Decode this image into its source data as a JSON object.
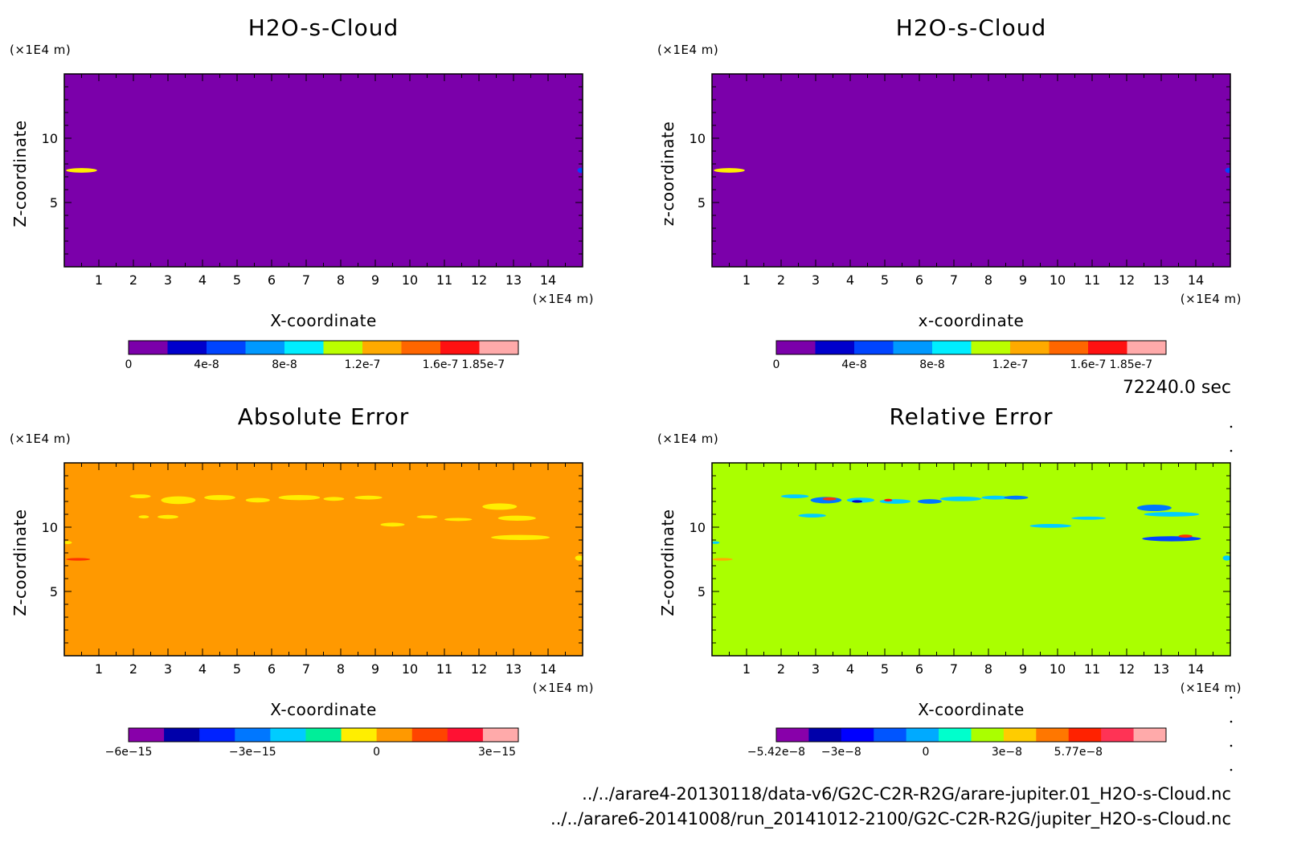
{
  "timestamp": "72240.0 sec",
  "files": [
    "../../arare4-20130118/data-v6/G2C-C2R-R2G/arare-jupiter.01_H2O-s-Cloud.nc",
    "../../arare6-20141008/run_20141012-2100/G2C-C2R-R2G/jupiter_H2O-s-Cloud.nc"
  ],
  "chart_data": [
    {
      "type": "heatmap",
      "title": "H2O-s-Cloud",
      "xlabel": "X-coordinate",
      "ylabel": "Z-coordinate",
      "x_unit": "(×1E4 m)",
      "y_unit": "(×1E4 m)",
      "xlim": [
        0,
        15
      ],
      "ylim": [
        0,
        15
      ],
      "x_ticks": [
        1,
        2,
        3,
        4,
        5,
        6,
        7,
        8,
        9,
        10,
        11,
        12,
        13,
        14
      ],
      "y_ticks": [
        5,
        10
      ],
      "background_color": "#7b00aa",
      "features": [
        {
          "x": 0.5,
          "z": 7.5,
          "rx": 0.45,
          "rz": 0.18,
          "color": "#ffee00"
        },
        {
          "x": 14.95,
          "z": 7.5,
          "rx": 0.1,
          "rz": 0.2,
          "color": "#0044ff"
        }
      ],
      "colorbar": {
        "colors": [
          "#7b00aa",
          "#0000cc",
          "#0044ff",
          "#0099ff",
          "#00eeff",
          "#bbff00",
          "#ffaa00",
          "#ff6600",
          "#ff1111",
          "#ffaaaa"
        ],
        "labels": [
          "0",
          "4e-8",
          "8e-8",
          "1.2e-7",
          "1.6e-7",
          "1.85e-7"
        ],
        "label_positions": [
          0,
          2,
          4,
          6,
          8,
          9.1
        ]
      }
    },
    {
      "type": "heatmap",
      "title": "H2O-s-Cloud",
      "xlabel": "x-coordinate",
      "ylabel": "z-coordinate",
      "x_unit": "(×1E4 m)",
      "y_unit": "(×1E4 m)",
      "xlim": [
        0,
        15
      ],
      "ylim": [
        0,
        15
      ],
      "x_ticks": [
        1,
        2,
        3,
        4,
        5,
        6,
        7,
        8,
        9,
        10,
        11,
        12,
        13,
        14
      ],
      "y_ticks": [
        5,
        10
      ],
      "background_color": "#7b00aa",
      "features": [
        {
          "x": 0.5,
          "z": 7.5,
          "rx": 0.45,
          "rz": 0.18,
          "color": "#ffee00"
        },
        {
          "x": 14.95,
          "z": 7.5,
          "rx": 0.1,
          "rz": 0.2,
          "color": "#0044ff"
        }
      ],
      "colorbar": {
        "colors": [
          "#7b00aa",
          "#0000cc",
          "#0044ff",
          "#0099ff",
          "#00eeff",
          "#bbff00",
          "#ffaa00",
          "#ff6600",
          "#ff1111",
          "#ffaaaa"
        ],
        "labels": [
          "0",
          "4e-8",
          "8e-8",
          "1.2e-7",
          "1.6e-7",
          "1.85e-7"
        ],
        "label_positions": [
          0,
          2,
          4,
          6,
          8,
          9.1
        ]
      }
    },
    {
      "type": "heatmap",
      "title": "Absolute Error",
      "xlabel": "X-coordinate",
      "ylabel": "Z-coordinate",
      "x_unit": "(×1E4 m)",
      "y_unit": "(×1E4 m)",
      "xlim": [
        0,
        15
      ],
      "ylim": [
        0,
        15
      ],
      "x_ticks": [
        1,
        2,
        3,
        4,
        5,
        6,
        7,
        8,
        9,
        10,
        11,
        12,
        13,
        14
      ],
      "y_ticks": [
        5,
        10
      ],
      "background_color": "#ff9900",
      "features": [
        {
          "x": 2.2,
          "z": 12.4,
          "rx": 0.3,
          "rz": 0.15,
          "color": "#ffee00"
        },
        {
          "x": 3.3,
          "z": 12.1,
          "rx": 0.5,
          "rz": 0.3,
          "color": "#ffee00"
        },
        {
          "x": 4.5,
          "z": 12.3,
          "rx": 0.45,
          "rz": 0.2,
          "color": "#ffee00"
        },
        {
          "x": 5.6,
          "z": 12.1,
          "rx": 0.35,
          "rz": 0.18,
          "color": "#ffee00"
        },
        {
          "x": 6.8,
          "z": 12.3,
          "rx": 0.6,
          "rz": 0.2,
          "color": "#ffee00"
        },
        {
          "x": 7.8,
          "z": 12.2,
          "rx": 0.3,
          "rz": 0.15,
          "color": "#ffee00"
        },
        {
          "x": 8.8,
          "z": 12.3,
          "rx": 0.4,
          "rz": 0.15,
          "color": "#ffee00"
        },
        {
          "x": 2.3,
          "z": 10.8,
          "rx": 0.15,
          "rz": 0.12,
          "color": "#ffee00"
        },
        {
          "x": 3.0,
          "z": 10.8,
          "rx": 0.3,
          "rz": 0.15,
          "color": "#ffee00"
        },
        {
          "x": 9.5,
          "z": 10.2,
          "rx": 0.35,
          "rz": 0.15,
          "color": "#ffee00"
        },
        {
          "x": 10.5,
          "z": 10.8,
          "rx": 0.3,
          "rz": 0.12,
          "color": "#ffee00"
        },
        {
          "x": 11.4,
          "z": 10.6,
          "rx": 0.4,
          "rz": 0.12,
          "color": "#ffee00"
        },
        {
          "x": 12.6,
          "z": 11.6,
          "rx": 0.5,
          "rz": 0.25,
          "color": "#ffee00"
        },
        {
          "x": 13.1,
          "z": 10.7,
          "rx": 0.55,
          "rz": 0.2,
          "color": "#ffee00"
        },
        {
          "x": 13.2,
          "z": 9.2,
          "rx": 0.85,
          "rz": 0.2,
          "color": "#ffee00"
        },
        {
          "x": 0.1,
          "z": 8.8,
          "rx": 0.12,
          "rz": 0.12,
          "color": "#ffee00"
        },
        {
          "x": 0.4,
          "z": 7.5,
          "rx": 0.35,
          "rz": 0.1,
          "color": "#ff3300"
        },
        {
          "x": 14.9,
          "z": 7.6,
          "rx": 0.12,
          "rz": 0.2,
          "color": "#ffee00"
        }
      ],
      "colorbar": {
        "colors": [
          "#8800aa",
          "#0000aa",
          "#0022ff",
          "#0077ff",
          "#00ccff",
          "#00ee99",
          "#ffee00",
          "#ff9900",
          "#ff4400",
          "#ff1133",
          "#ffaaaa"
        ],
        "labels": [
          "−6e−15",
          "−3e−15",
          "0",
          "3e−15"
        ],
        "label_positions": [
          0,
          3.5,
          7.0,
          10.4
        ]
      }
    },
    {
      "type": "heatmap",
      "title": "Relative Error",
      "xlabel": "X-coordinate",
      "ylabel": "Z-coordinate",
      "x_unit": "(×1E4 m)",
      "y_unit": "(×1E4 m)",
      "xlim": [
        0,
        15
      ],
      "ylim": [
        0,
        15
      ],
      "x_ticks": [
        1,
        2,
        3,
        4,
        5,
        6,
        7,
        8,
        9,
        10,
        11,
        12,
        13,
        14
      ],
      "y_ticks": [
        5,
        10
      ],
      "background_color": "#aaff00",
      "features": [
        {
          "x": 2.4,
          "z": 12.4,
          "rx": 0.4,
          "rz": 0.15,
          "color": "#00ccff"
        },
        {
          "x": 3.3,
          "z": 12.1,
          "rx": 0.45,
          "rz": 0.25,
          "color": "#0077ff"
        },
        {
          "x": 3.4,
          "z": 12.2,
          "rx": 0.2,
          "rz": 0.12,
          "color": "#ff3300"
        },
        {
          "x": 4.3,
          "z": 12.1,
          "rx": 0.4,
          "rz": 0.2,
          "color": "#00ccff"
        },
        {
          "x": 4.2,
          "z": 12.0,
          "rx": 0.15,
          "rz": 0.1,
          "color": "#0000cc"
        },
        {
          "x": 5.3,
          "z": 12.0,
          "rx": 0.45,
          "rz": 0.18,
          "color": "#00ccff"
        },
        {
          "x": 5.1,
          "z": 12.1,
          "rx": 0.12,
          "rz": 0.1,
          "color": "#ff1111"
        },
        {
          "x": 6.3,
          "z": 12.0,
          "rx": 0.35,
          "rz": 0.18,
          "color": "#0077ff"
        },
        {
          "x": 7.2,
          "z": 12.2,
          "rx": 0.6,
          "rz": 0.18,
          "color": "#00ccff"
        },
        {
          "x": 8.2,
          "z": 12.3,
          "rx": 0.4,
          "rz": 0.15,
          "color": "#00ccff"
        },
        {
          "x": 8.8,
          "z": 12.3,
          "rx": 0.35,
          "rz": 0.15,
          "color": "#0077ff"
        },
        {
          "x": 2.9,
          "z": 10.9,
          "rx": 0.4,
          "rz": 0.15,
          "color": "#00ccff"
        },
        {
          "x": 9.8,
          "z": 10.1,
          "rx": 0.6,
          "rz": 0.15,
          "color": "#00ccff"
        },
        {
          "x": 10.9,
          "z": 10.7,
          "rx": 0.5,
          "rz": 0.12,
          "color": "#00ccff"
        },
        {
          "x": 12.8,
          "z": 11.5,
          "rx": 0.5,
          "rz": 0.25,
          "color": "#0077ff"
        },
        {
          "x": 13.3,
          "z": 11.0,
          "rx": 0.8,
          "rz": 0.18,
          "color": "#00ccff"
        },
        {
          "x": 13.3,
          "z": 9.1,
          "rx": 0.85,
          "rz": 0.2,
          "color": "#0044ff"
        },
        {
          "x": 13.7,
          "z": 9.3,
          "rx": 0.2,
          "rz": 0.12,
          "color": "#ff3300"
        },
        {
          "x": 0.3,
          "z": 7.5,
          "rx": 0.3,
          "rz": 0.1,
          "color": "#ffaa00"
        },
        {
          "x": 0.1,
          "z": 8.8,
          "rx": 0.12,
          "rz": 0.1,
          "color": "#00ccff"
        },
        {
          "x": 14.9,
          "z": 7.6,
          "rx": 0.12,
          "rz": 0.2,
          "color": "#00ccff"
        }
      ],
      "colorbar": {
        "colors": [
          "#8800aa",
          "#0000aa",
          "#0000ff",
          "#0055ff",
          "#00aaff",
          "#00ffcc",
          "#aaff00",
          "#ffcc00",
          "#ff7700",
          "#ff2200",
          "#ff3355",
          "#ffaaaa"
        ],
        "labels": [
          "−5.42e−8",
          "−3e−8",
          "0",
          "3e−8",
          "5.77e−8"
        ],
        "label_positions": [
          0,
          2.0,
          4.6,
          7.1,
          9.3
        ]
      }
    }
  ]
}
